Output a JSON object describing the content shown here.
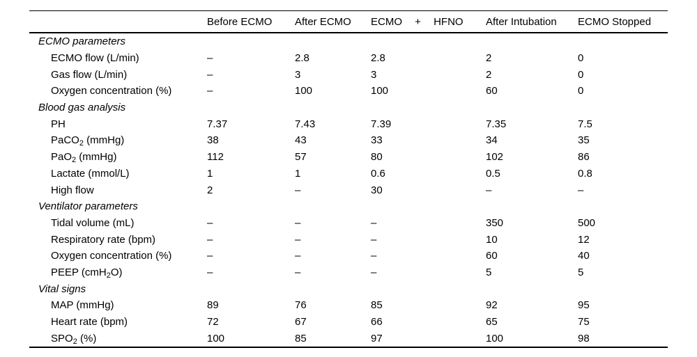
{
  "table": {
    "columns": [
      "",
      "Before ECMO",
      "After ECMO",
      "ECMO + HFNO",
      "After Intubation",
      "ECMO Stopped"
    ],
    "sections": [
      {
        "title": "ECMO parameters",
        "rows": [
          {
            "label": [
              {
                "text": "ECMO flow (L/min)"
              }
            ],
            "values": [
              "–",
              "2.8",
              "2.8",
              "2",
              "0"
            ]
          },
          {
            "label": [
              {
                "text": "Gas flow (L/min)"
              }
            ],
            "values": [
              "–",
              "3",
              "3",
              "2",
              "0"
            ]
          },
          {
            "label": [
              {
                "text": "Oxygen concentration (%)"
              }
            ],
            "values": [
              "–",
              "100",
              "100",
              "60",
              "0"
            ]
          }
        ]
      },
      {
        "title": "Blood gas analysis",
        "rows": [
          {
            "label": [
              {
                "text": "PH"
              }
            ],
            "values": [
              "7.37",
              "7.43",
              "7.39",
              "7.35",
              "7.5"
            ]
          },
          {
            "label": [
              {
                "text": "PaCO"
              },
              {
                "text": "2",
                "subscript": true
              },
              {
                "text": " (mmHg)"
              }
            ],
            "values": [
              "38",
              "43",
              "33",
              "34",
              "35"
            ]
          },
          {
            "label": [
              {
                "text": "PaO"
              },
              {
                "text": "2",
                "subscript": true
              },
              {
                "text": " (mmHg)"
              }
            ],
            "values": [
              "112",
              "57",
              "80",
              "102",
              "86"
            ]
          },
          {
            "label": [
              {
                "text": "Lactate (mmol/L)"
              }
            ],
            "values": [
              "1",
              "1",
              "0.6",
              "0.5",
              "0.8"
            ]
          },
          {
            "label": [
              {
                "text": "High flow"
              }
            ],
            "values": [
              "2",
              "–",
              "30",
              "–",
              "–"
            ]
          }
        ]
      },
      {
        "title": "Ventilator parameters",
        "rows": [
          {
            "label": [
              {
                "text": "Tidal volume (mL)"
              }
            ],
            "values": [
              "–",
              "–",
              "–",
              "350",
              "500"
            ]
          },
          {
            "label": [
              {
                "text": "Respiratory rate (bpm)"
              }
            ],
            "values": [
              "–",
              "–",
              "–",
              "10",
              "12"
            ]
          },
          {
            "label": [
              {
                "text": "Oxygen concentration (%)"
              }
            ],
            "values": [
              "–",
              "–",
              "–",
              "60",
              "40"
            ]
          },
          {
            "label": [
              {
                "text": "PEEP (cmH"
              },
              {
                "text": "2",
                "subscript": true
              },
              {
                "text": "O)"
              }
            ],
            "values": [
              "–",
              "–",
              "–",
              "5",
              "5"
            ]
          }
        ]
      },
      {
        "title": "Vital signs",
        "rows": [
          {
            "label": [
              {
                "text": "MAP (mmHg)"
              }
            ],
            "values": [
              "89",
              "76",
              "85",
              "92",
              "95"
            ]
          },
          {
            "label": [
              {
                "text": "Heart rate (bpm)"
              }
            ],
            "values": [
              "72",
              "67",
              "66",
              "65",
              "75"
            ]
          },
          {
            "label": [
              {
                "text": "SPO"
              },
              {
                "text": "2",
                "subscript": true
              },
              {
                "text": " (%)"
              }
            ],
            "values": [
              "100",
              "85",
              "97",
              "100",
              "98"
            ]
          }
        ]
      }
    ]
  }
}
